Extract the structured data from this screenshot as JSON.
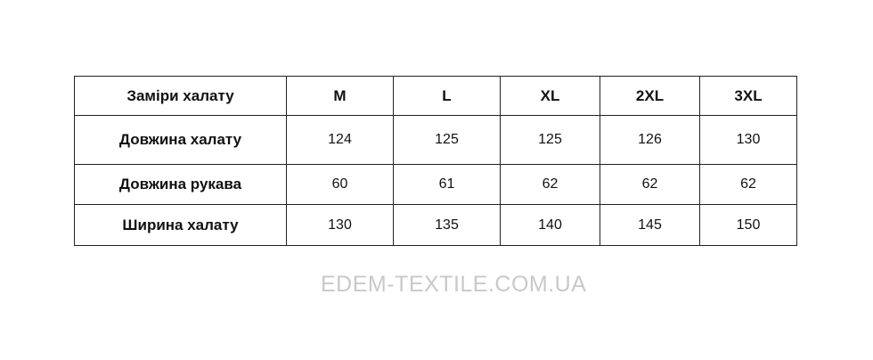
{
  "table": {
    "header": [
      "Заміри халату",
      "M",
      "L",
      "XL",
      "2XL",
      "3XL"
    ],
    "rows": [
      {
        "label": "Довжина халату",
        "values": [
          "124",
          "125",
          "125",
          "126",
          "130"
        ]
      },
      {
        "label": "Довжина рукава",
        "values": [
          "60",
          "61",
          "62",
          "62",
          "62"
        ]
      },
      {
        "label": "Ширина халату",
        "values": [
          "130",
          "135",
          "140",
          "145",
          "150"
        ]
      }
    ]
  },
  "watermark": "EDEM-TEXTILE.COM.UA"
}
